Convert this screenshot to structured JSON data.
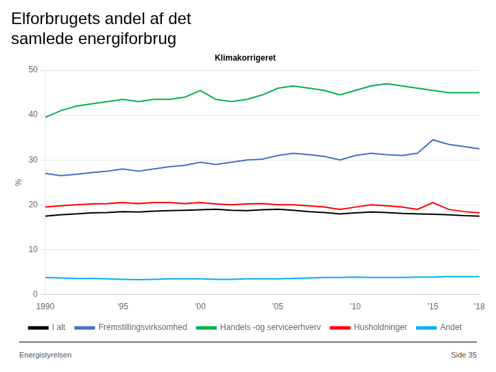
{
  "chart_data": {
    "type": "line",
    "title": [
      "Elforbrugets andel af det",
      "samlede energiforbrug"
    ],
    "subtitle": "Klimakorrigeret",
    "y_label": "%",
    "annotations": [
      "Energistyrelsen",
      "Side 35"
    ],
    "x": [
      1990,
      1991,
      1992,
      1993,
      1994,
      1995,
      1996,
      1997,
      1998,
      1999,
      2000,
      2001,
      2002,
      2003,
      2004,
      2005,
      2006,
      2007,
      2008,
      2009,
      2010,
      2011,
      2012,
      2013,
      2014,
      2015,
      2016,
      2017,
      2018
    ],
    "series": [
      {
        "name": "I alt",
        "color": "#000000",
        "values": [
          17.5,
          17.8,
          18.0,
          18.2,
          18.3,
          18.5,
          18.4,
          18.6,
          18.7,
          18.8,
          18.9,
          19.0,
          18.8,
          18.7,
          18.9,
          19.0,
          18.8,
          18.5,
          18.3,
          18.0,
          18.2,
          18.4,
          18.3,
          18.1,
          18.0,
          17.9,
          17.8,
          17.6,
          17.5
        ]
      },
      {
        "name": "Fremstillingsvirksomhed",
        "color": "#4472C4",
        "values": [
          27.0,
          26.5,
          26.8,
          27.2,
          27.5,
          28.0,
          27.5,
          28.0,
          28.5,
          28.8,
          29.5,
          29.0,
          29.5,
          30.0,
          30.2,
          31.0,
          31.5,
          31.2,
          30.8,
          30.0,
          31.0,
          31.5,
          31.2,
          31.0,
          31.5,
          34.5,
          33.5,
          33.0,
          32.5
        ]
      },
      {
        "name": "Handels -og serviceerhverv",
        "color": "#00B050",
        "values": [
          39.5,
          41.0,
          42.0,
          42.5,
          43.0,
          43.5,
          43.0,
          43.5,
          43.5,
          44.0,
          45.5,
          43.5,
          43.0,
          43.5,
          44.5,
          46.0,
          46.5,
          46.0,
          45.5,
          44.5,
          45.5,
          46.5,
          47.0,
          46.5,
          46.0,
          45.5,
          45.0,
          45.0,
          45.0
        ]
      },
      {
        "name": "Husholdninger",
        "color": "#FF0000",
        "values": [
          19.5,
          19.8,
          20.0,
          20.2,
          20.3,
          20.5,
          20.3,
          20.5,
          20.5,
          20.3,
          20.5,
          20.2,
          20.0,
          20.2,
          20.3,
          20.0,
          20.0,
          19.8,
          19.5,
          19.0,
          19.5,
          20.0,
          19.8,
          19.5,
          19.0,
          20.5,
          19.0,
          18.5,
          18.2
        ]
      },
      {
        "name": "Andet",
        "color": "#00B0F0",
        "values": [
          3.8,
          3.7,
          3.6,
          3.6,
          3.5,
          3.4,
          3.3,
          3.4,
          3.5,
          3.5,
          3.5,
          3.4,
          3.4,
          3.5,
          3.5,
          3.5,
          3.6,
          3.7,
          3.8,
          3.8,
          3.9,
          3.8,
          3.8,
          3.8,
          3.9,
          3.9,
          4.0,
          4.0,
          4.0
        ]
      }
    ],
    "xlim": [
      1990,
      2018
    ],
    "xticks": [
      1990,
      {
        "value": 1995,
        "label": "'95"
      },
      {
        "value": 2000,
        "label": "'00"
      },
      {
        "value": 2005,
        "label": "'05"
      },
      {
        "value": 2010,
        "label": "'10"
      },
      {
        "value": 2015,
        "label": "'15"
      },
      {
        "value": 2018,
        "label": "'18"
      }
    ],
    "ylim": [
      0,
      50
    ],
    "yticks": [
      0,
      10,
      20,
      30,
      40,
      50
    ],
    "grid": "y",
    "legend": "bottom"
  }
}
